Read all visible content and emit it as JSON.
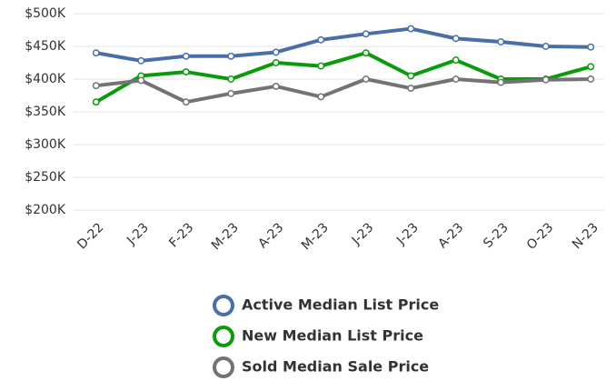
{
  "chart_data": {
    "type": "line",
    "categories": [
      "D-22",
      "J-23",
      "F-23",
      "M-23",
      "A-23",
      "M-23",
      "J-23",
      "J-23",
      "A-23",
      "S-23",
      "O-23",
      "N-23"
    ],
    "series": [
      {
        "name": "Active Median List Price",
        "color": "#4a6ea8",
        "values": [
          440000,
          428000,
          435000,
          435000,
          441000,
          460000,
          469000,
          477000,
          462000,
          457000,
          450000,
          449000
        ]
      },
      {
        "name": "New Median List Price",
        "color": "#0b9a0b",
        "values": [
          365000,
          405000,
          411000,
          400000,
          425000,
          420000,
          440000,
          405000,
          429000,
          400000,
          400000,
          419000
        ]
      },
      {
        "name": "Sold Median Sale Price",
        "color": "#737373",
        "values": [
          390000,
          398000,
          365000,
          378000,
          389000,
          373000,
          400000,
          386000,
          400000,
          395000,
          399000,
          400000
        ]
      }
    ],
    "ylim": [
      200000,
      500000
    ],
    "yticks": [
      {
        "value": 200000,
        "label": "$200K"
      },
      {
        "value": 250000,
        "label": "$250K"
      },
      {
        "value": 300000,
        "label": "$300K"
      },
      {
        "value": 350000,
        "label": "$350K"
      },
      {
        "value": 400000,
        "label": "$400K"
      },
      {
        "value": 450000,
        "label": "$450K"
      },
      {
        "value": 500000,
        "label": "$500K"
      }
    ],
    "grid": true,
    "legend": "bottom"
  }
}
